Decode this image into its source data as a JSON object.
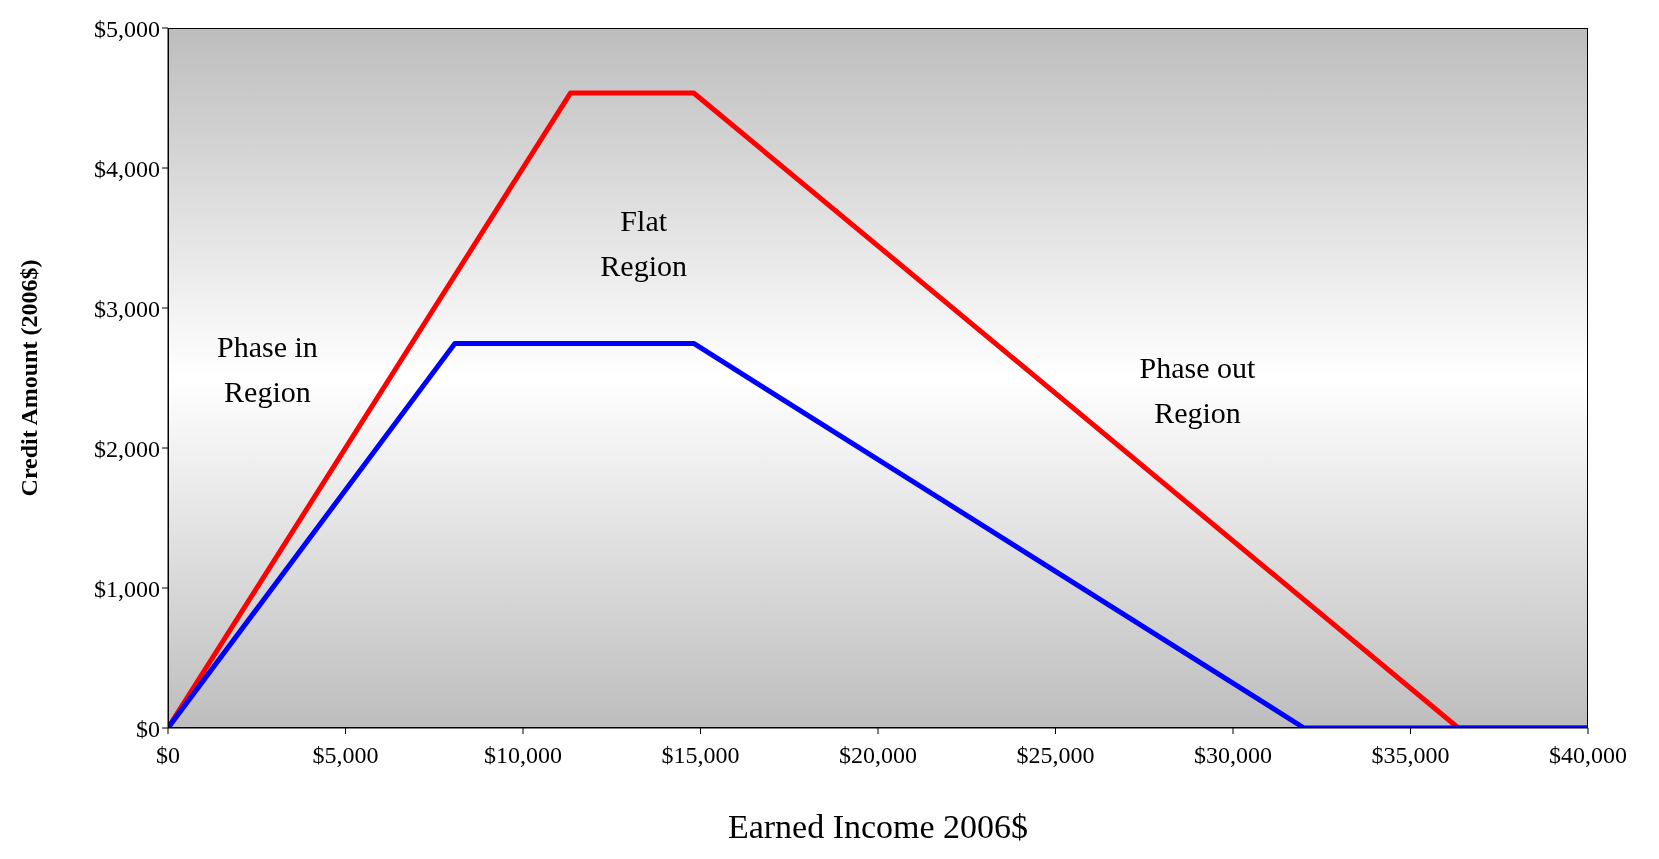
{
  "chart_data": {
    "type": "line",
    "xlabel": "Earned Income 2006$",
    "ylabel": "Credit Amount (2006$)",
    "series": [
      {
        "color": "#ff0000",
        "x": [
          0,
          11340,
          14810,
          36348,
          40000
        ],
        "values": [
          0,
          4536,
          4536,
          0,
          0
        ]
      },
      {
        "color": "#0000ff",
        "x": [
          0,
          8080,
          14810,
          32001,
          40000
        ],
        "values": [
          0,
          2747,
          2747,
          0,
          0
        ]
      }
    ],
    "xlim": [
      0,
      40000
    ],
    "xticks": [
      {
        "value": 0,
        "label": "$0"
      },
      {
        "value": 5000,
        "label": "$5,000"
      },
      {
        "value": 10000,
        "label": "$10,000"
      },
      {
        "value": 15000,
        "label": "$15,000"
      },
      {
        "value": 20000,
        "label": "$20,000"
      },
      {
        "value": 25000,
        "label": "$25,000"
      },
      {
        "value": 30000,
        "label": "$30,000"
      },
      {
        "value": 35000,
        "label": "$35,000"
      },
      {
        "value": 40000,
        "label": "$40,000"
      }
    ],
    "ylim": [
      0,
      5000
    ],
    "yticks": [
      {
        "value": 0,
        "label": "$0"
      },
      {
        "value": 1000,
        "label": "$1,000"
      },
      {
        "value": 2000,
        "label": "$2,000"
      },
      {
        "value": 3000,
        "label": "$3,000"
      },
      {
        "value": 4000,
        "label": "$4,000"
      },
      {
        "value": 5000,
        "label": "$5,000"
      }
    ],
    "annotations": [
      "Phase in Region",
      "Flat Region",
      "Phase out Region"
    ],
    "grid": false,
    "legend": false,
    "marker": "none",
    "line_style": "solid"
  }
}
